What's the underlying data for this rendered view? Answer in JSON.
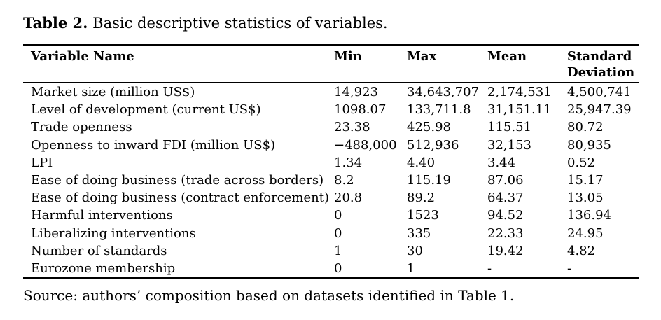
{
  "page": {
    "title": {
      "prefix_bold": "Table 2.",
      "text": "Basic descriptive statistics of variables."
    },
    "source_note": "Source: authors’ composition based on datasets identified in Table 1."
  },
  "table": {
    "columns": [
      {
        "key": "variable",
        "label": "Variable Name"
      },
      {
        "key": "min",
        "label": "Min"
      },
      {
        "key": "max",
        "label": "Max"
      },
      {
        "key": "mean",
        "label": "Mean"
      },
      {
        "key": "std",
        "label": "Standard Deviation"
      }
    ],
    "rows": [
      {
        "variable": "Market size (million US$)",
        "min": "14,923",
        "max": "34,643,707",
        "mean": "2,174,531",
        "std": "4,500,741"
      },
      {
        "variable": "Level of development (current US$)",
        "min": "1098.07",
        "max": "133,711.8",
        "mean": "31,151.11",
        "std": "25,947.39"
      },
      {
        "variable": "Trade openness",
        "min": "23.38",
        "max": "425.98",
        "mean": "115.51",
        "std": "80.72"
      },
      {
        "variable": "Openness to inward FDI (million US$)",
        "min": "−488,000",
        "max": "512,936",
        "mean": "32,153",
        "std": "80,935"
      },
      {
        "variable": "LPI",
        "min": "1.34",
        "max": "4.40",
        "mean": "3.44",
        "std": "0.52"
      },
      {
        "variable": "Ease of doing business (trade across borders)",
        "min": "8.2",
        "max": "115.19",
        "mean": "87.06",
        "std": "15.17"
      },
      {
        "variable": "Ease of doing business (contract enforcement)",
        "min": "20.8",
        "max": "89.2",
        "mean": "64.37",
        "std": "13.05"
      },
      {
        "variable": "Harmful interventions",
        "min": "0",
        "max": "1523",
        "mean": "94.52",
        "std": "136.94"
      },
      {
        "variable": "Liberalizing interventions",
        "min": "0",
        "max": "335",
        "mean": "22.33",
        "std": "24.95"
      },
      {
        "variable": "Number of standards",
        "min": "1",
        "max": "30",
        "mean": "19.42",
        "std": "4.82"
      },
      {
        "variable": "Eurozone membership",
        "min": "0",
        "max": "1",
        "mean": "-",
        "std": "-"
      }
    ]
  },
  "colors": {
    "text": "#000000",
    "background": "#ffffff",
    "rule": "#000000"
  }
}
